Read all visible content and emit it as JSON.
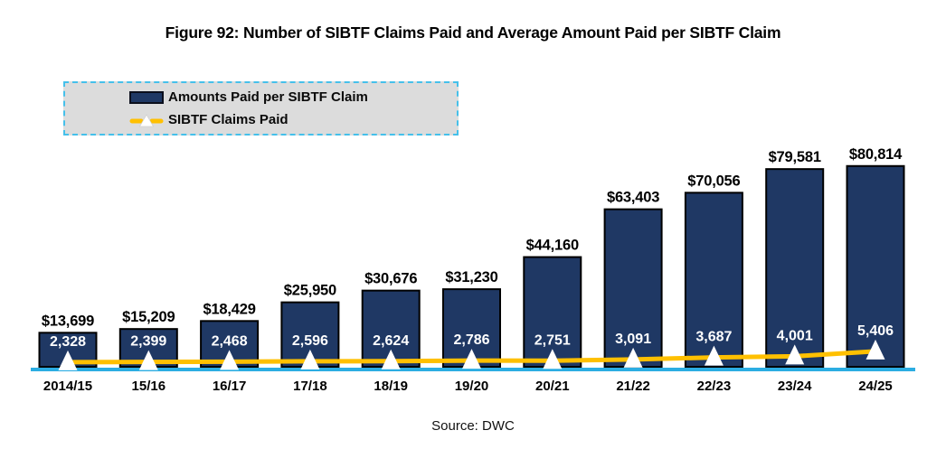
{
  "title": "Figure 92: Number of SIBTF Claims Paid and Average Amount Paid per SIBTF Claim",
  "source": "Source: DWC",
  "chart_data": {
    "type": "bar+line",
    "title": "Figure 92: Number of SIBTF Claims Paid and Average Amount Paid per SIBTF Claim",
    "xlabel": "",
    "ylabel": "",
    "categories": [
      "2014/15",
      "15/16",
      "16/17",
      "17/18",
      "18/19",
      "19/20",
      "20/21",
      "21/22",
      "22/23",
      "23/24",
      "24/25"
    ],
    "series": [
      {
        "name": "Amounts Paid per SIBTF Claim",
        "type": "bar",
        "axis": "primary",
        "values": [
          13699,
          15209,
          18429,
          25950,
          30676,
          31230,
          44160,
          63403,
          70056,
          79581,
          80814
        ],
        "labels": [
          "$13,699",
          "$15,209",
          "$18,429",
          "$25,950",
          "$30,676",
          "$31,230",
          "$44,160",
          "$63,403",
          "$70,056",
          "$79,581",
          "$80,814"
        ]
      },
      {
        "name": "SIBTF Claims Paid",
        "type": "line",
        "axis": "secondary",
        "marker": "white-triangle",
        "values": [
          2328,
          2399,
          2468,
          2596,
          2624,
          2786,
          2751,
          3091,
          3687,
          4001,
          5406
        ],
        "labels": [
          "2,328",
          "2,399",
          "2,468",
          "2,596",
          "2,624",
          "2,786",
          "2,751",
          "3,091",
          "3,687",
          "4,001",
          "5,406"
        ]
      }
    ],
    "primary_axis": {
      "min": 0,
      "max": 88000,
      "visible": false
    },
    "secondary_axis": {
      "min": 0,
      "max": 62000,
      "visible": false
    },
    "grid": false,
    "legend_position": "top-left",
    "colors": {
      "bar_fill": "#1f3864",
      "bar_border": "#000000",
      "line": "#ffc000",
      "marker_fill": "#ffffff",
      "baseline_axis": "#2cadе2",
      "baseline": "#2cade2",
      "legend_bg": "#dcdcdc",
      "legend_border": "#45c0ea",
      "value_label": "#000000",
      "claims_label": "#ffffff"
    }
  }
}
